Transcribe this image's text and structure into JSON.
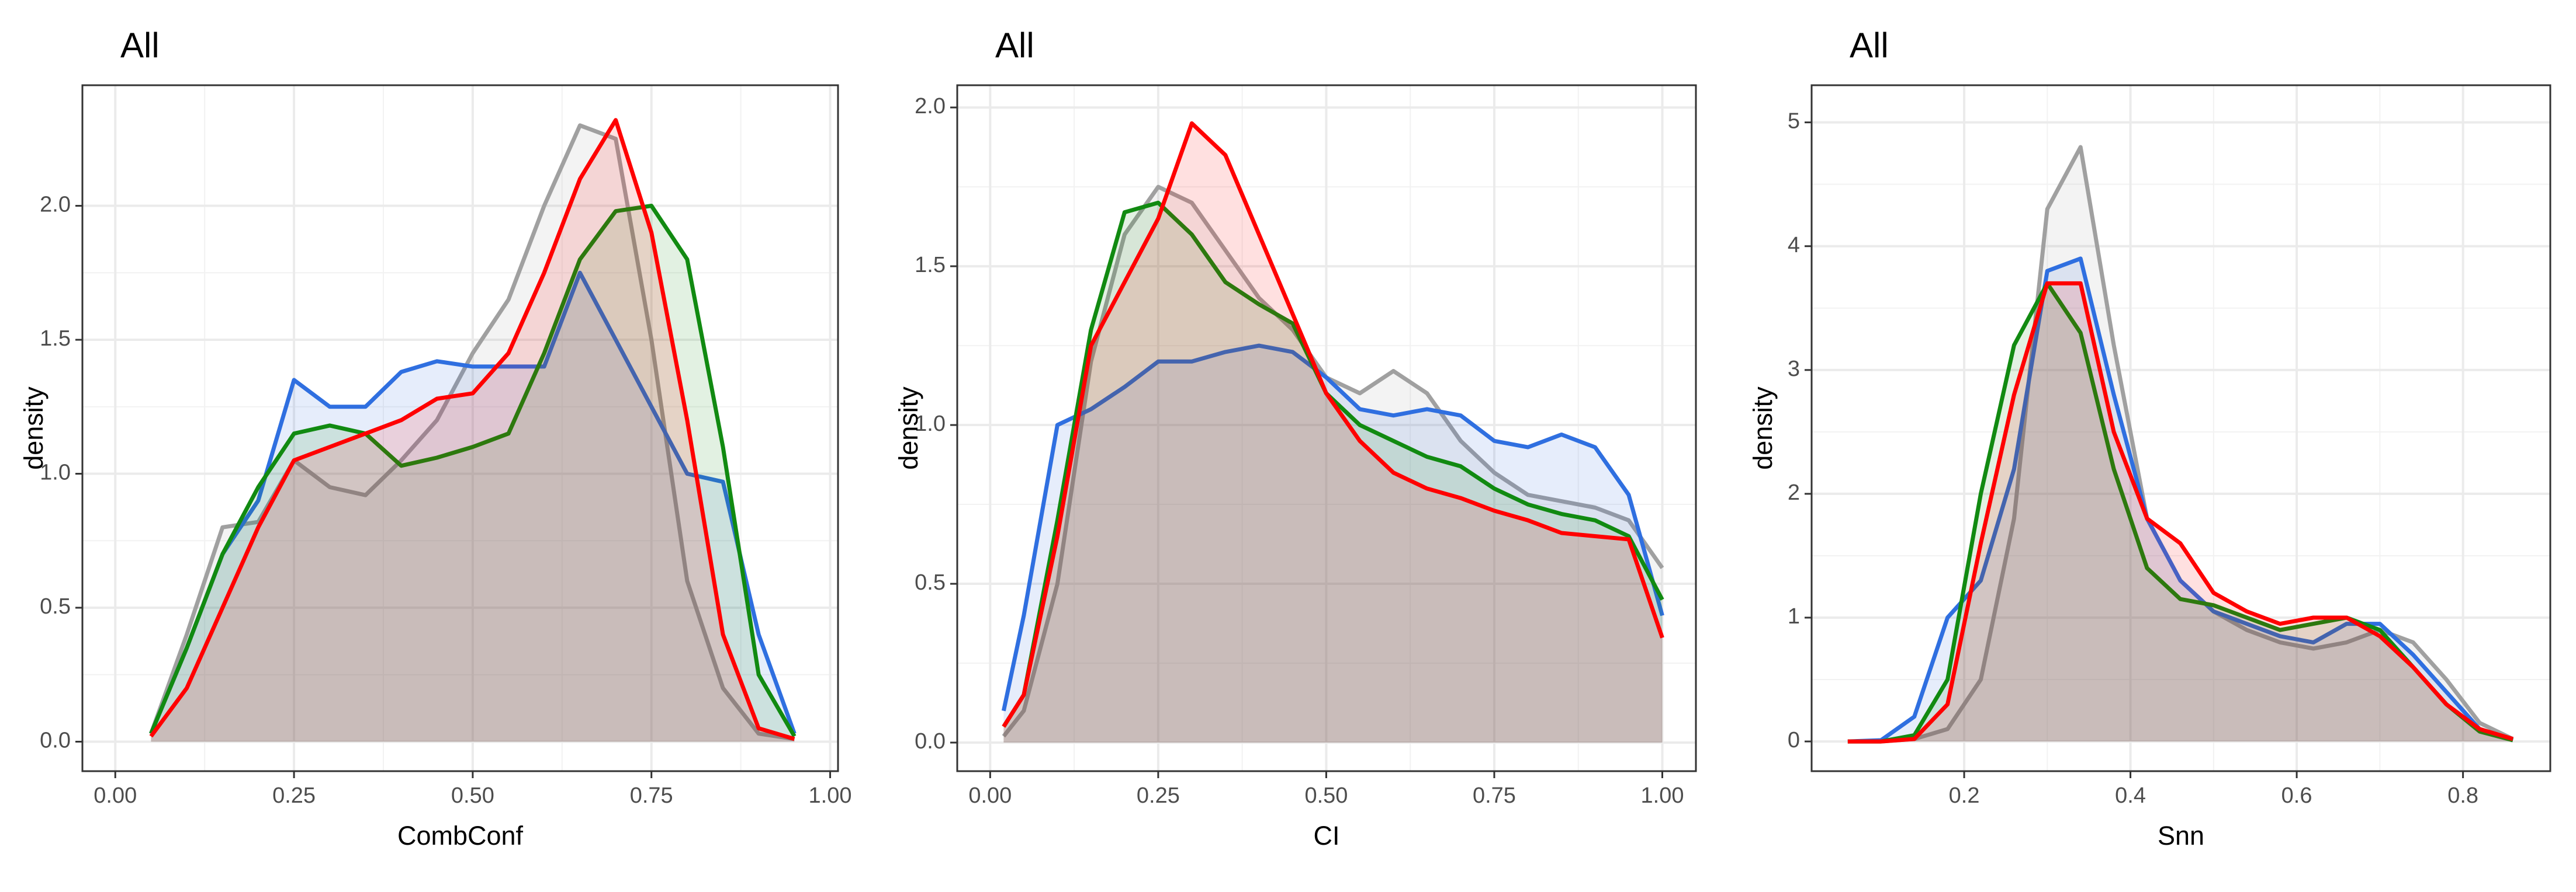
{
  "chart_data": [
    {
      "type": "area",
      "title": "All",
      "x_label": "CombConf",
      "y_label": "density",
      "grid": true,
      "x": [
        0.05,
        0.1,
        0.15,
        0.2,
        0.25,
        0.3,
        0.35,
        0.4,
        0.45,
        0.5,
        0.55,
        0.6,
        0.65,
        0.7,
        0.75,
        0.8,
        0.85,
        0.9,
        0.95
      ],
      "series": [
        {
          "color": "#a0a0a0",
          "values": [
            0.03,
            0.4,
            0.8,
            0.82,
            1.05,
            0.95,
            0.92,
            1.05,
            1.2,
            1.45,
            1.65,
            2.0,
            2.3,
            2.25,
            1.5,
            0.6,
            0.2,
            0.03,
            0.01
          ]
        },
        {
          "color": "#2f6fe0",
          "values": [
            0.03,
            0.35,
            0.7,
            0.9,
            1.35,
            1.25,
            1.25,
            1.38,
            1.42,
            1.4,
            1.4,
            1.4,
            1.75,
            1.5,
            1.25,
            1.0,
            0.97,
            0.4,
            0.03
          ]
        },
        {
          "color": "#118a11",
          "values": [
            0.03,
            0.35,
            0.7,
            0.95,
            1.15,
            1.18,
            1.15,
            1.03,
            1.06,
            1.1,
            1.15,
            1.45,
            1.8,
            1.98,
            2.0,
            1.8,
            1.1,
            0.25,
            0.02
          ]
        },
        {
          "color": "#ff0000",
          "values": [
            0.02,
            0.2,
            0.5,
            0.8,
            1.05,
            1.1,
            1.15,
            1.2,
            1.28,
            1.3,
            1.45,
            1.75,
            2.1,
            2.32,
            1.9,
            1.2,
            0.4,
            0.05,
            0.01
          ]
        }
      ],
      "xlim": [
        -0.046,
        1.011
      ],
      "ylim": [
        -0.11,
        2.45
      ],
      "xticks": [
        {
          "value": 0,
          "label": "0.00"
        },
        {
          "value": 0.25,
          "label": "0.25"
        },
        {
          "value": 0.5,
          "label": "0.50"
        },
        {
          "value": 0.75,
          "label": "0.75"
        },
        {
          "value": 1,
          "label": "1.00"
        }
      ],
      "yticks": [
        {
          "value": 0,
          "label": "0.0"
        },
        0.5,
        {
          "value": 1,
          "label": "1.0"
        },
        1.5,
        {
          "value": 2,
          "label": "2.0"
        }
      ]
    },
    {
      "type": "area",
      "title": "All",
      "x_label": "CI",
      "y_label": "density",
      "grid": true,
      "x": [
        0.02,
        0.05,
        0.1,
        0.15,
        0.2,
        0.25,
        0.3,
        0.35,
        0.4,
        0.45,
        0.5,
        0.55,
        0.6,
        0.65,
        0.7,
        0.75,
        0.8,
        0.85,
        0.9,
        0.95,
        1.0
      ],
      "series": [
        {
          "color": "#a0a0a0",
          "values": [
            0.02,
            0.1,
            0.5,
            1.2,
            1.6,
            1.75,
            1.7,
            1.55,
            1.4,
            1.3,
            1.15,
            1.1,
            1.17,
            1.1,
            0.95,
            0.85,
            0.78,
            0.76,
            0.74,
            0.7,
            0.55
          ]
        },
        {
          "color": "#2f6fe0",
          "values": [
            0.1,
            0.4,
            1.0,
            1.05,
            1.12,
            1.2,
            1.2,
            1.23,
            1.25,
            1.23,
            1.15,
            1.05,
            1.03,
            1.05,
            1.03,
            0.95,
            0.93,
            0.97,
            0.93,
            0.78,
            0.4
          ]
        },
        {
          "color": "#118a11",
          "values": [
            0.05,
            0.15,
            0.7,
            1.3,
            1.67,
            1.7,
            1.6,
            1.45,
            1.38,
            1.32,
            1.1,
            1.0,
            0.95,
            0.9,
            0.87,
            0.8,
            0.75,
            0.72,
            0.7,
            0.65,
            0.45
          ]
        },
        {
          "color": "#ff0000",
          "values": [
            0.05,
            0.15,
            0.65,
            1.25,
            1.45,
            1.65,
            1.95,
            1.85,
            1.6,
            1.35,
            1.1,
            0.95,
            0.85,
            0.8,
            0.77,
            0.73,
            0.7,
            0.66,
            0.65,
            0.64,
            0.33
          ]
        }
      ],
      "xlim": [
        -0.049,
        1.05
      ],
      "ylim": [
        -0.09,
        2.07
      ],
      "xticks": [
        {
          "value": 0,
          "label": "0.00"
        },
        {
          "value": 0.25,
          "label": "0.25"
        },
        {
          "value": 0.5,
          "label": "0.50"
        },
        {
          "value": 0.75,
          "label": "0.75"
        },
        {
          "value": 1,
          "label": "1.00"
        }
      ],
      "yticks": [
        {
          "value": 0,
          "label": "0.0"
        },
        0.5,
        {
          "value": 1,
          "label": "1.0"
        },
        1.5,
        {
          "value": 2,
          "label": "2.0"
        }
      ]
    },
    {
      "type": "area",
      "title": "All",
      "x_label": "Snn",
      "y_label": "density",
      "grid": true,
      "x": [
        0.06,
        0.1,
        0.14,
        0.18,
        0.22,
        0.26,
        0.3,
        0.34,
        0.38,
        0.42,
        0.46,
        0.5,
        0.54,
        0.58,
        0.62,
        0.66,
        0.7,
        0.74,
        0.78,
        0.82,
        0.86
      ],
      "series": [
        {
          "color": "#a0a0a0",
          "values": [
            0,
            0,
            0.02,
            0.1,
            0.5,
            1.8,
            4.3,
            4.8,
            3.2,
            1.8,
            1.3,
            1.05,
            0.9,
            0.8,
            0.75,
            0.8,
            0.9,
            0.8,
            0.5,
            0.15,
            0.02
          ]
        },
        {
          "color": "#2f6fe0",
          "values": [
            0,
            0.01,
            0.2,
            1.0,
            1.3,
            2.2,
            3.8,
            3.9,
            2.8,
            1.8,
            1.3,
            1.05,
            0.95,
            0.85,
            0.8,
            0.95,
            0.95,
            0.7,
            0.4,
            0.1,
            0.01
          ]
        },
        {
          "color": "#118a11",
          "values": [
            0,
            0,
            0.05,
            0.5,
            2.0,
            3.2,
            3.7,
            3.3,
            2.2,
            1.4,
            1.15,
            1.1,
            1.0,
            0.9,
            0.95,
            1.0,
            0.9,
            0.6,
            0.3,
            0.08,
            0.01
          ]
        },
        {
          "color": "#ff0000",
          "values": [
            0,
            0,
            0.02,
            0.3,
            1.6,
            2.8,
            3.7,
            3.7,
            2.5,
            1.8,
            1.6,
            1.2,
            1.05,
            0.95,
            1.0,
            1.0,
            0.85,
            0.6,
            0.3,
            0.1,
            0.02
          ]
        }
      ],
      "xlim": [
        0.0165,
        0.905
      ],
      "ylim": [
        -0.24,
        5.3
      ],
      "xticks": [
        0.2,
        0.4,
        0.6,
        0.8
      ],
      "yticks": [
        0,
        1,
        2,
        3,
        4,
        5
      ]
    }
  ]
}
